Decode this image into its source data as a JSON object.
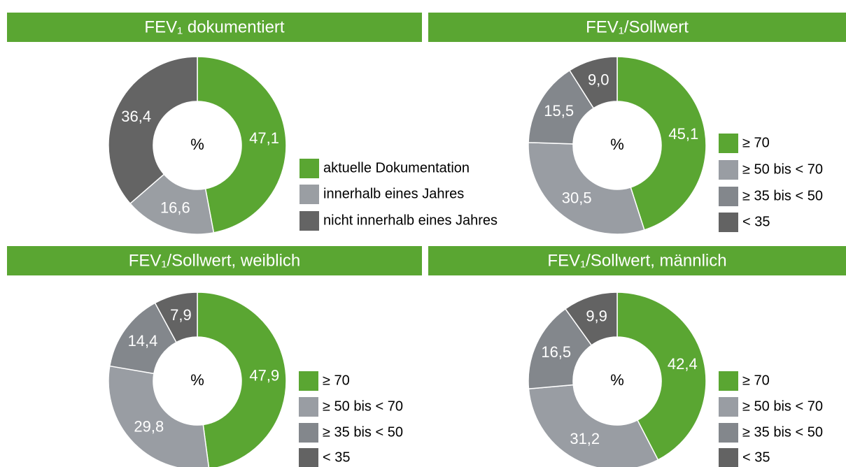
{
  "chart_data": [
    {
      "type": "pie",
      "title": "FEV₁ dokumentiert",
      "center_label": "%",
      "categories": [
        "aktuelle Dokumentation",
        "innerhalb eines Jahres",
        "nicht innerhalb eines Jahres"
      ],
      "values": [
        47.1,
        16.6,
        36.4
      ],
      "value_labels": [
        "47,1",
        "16,6",
        "36,4"
      ],
      "colors": [
        "#5aa632",
        "#9a9ea3",
        "#646464"
      ]
    },
    {
      "type": "pie",
      "title": "FEV₁/Sollwert",
      "center_label": "%",
      "categories": [
        "≥ 70",
        "≥ 50 bis < 70",
        "≥ 35 bis < 50",
        "< 35"
      ],
      "values": [
        45.1,
        30.5,
        15.5,
        9.0
      ],
      "value_labels": [
        "45,1",
        "30,5",
        "15,5",
        "9,0"
      ],
      "colors": [
        "#5aa632",
        "#999da3",
        "#83878c",
        "#636363"
      ]
    },
    {
      "type": "pie",
      "title": "FEV₁/Sollwert, weiblich",
      "center_label": "%",
      "categories": [
        "≥ 70",
        "≥ 50 bis < 70",
        "≥ 35 bis < 50",
        "< 35"
      ],
      "values": [
        47.9,
        29.8,
        14.4,
        7.9
      ],
      "value_labels": [
        "47,9",
        "29,8",
        "14,4",
        "7,9"
      ],
      "colors": [
        "#5aa632",
        "#999da3",
        "#83878c",
        "#636363"
      ]
    },
    {
      "type": "pie",
      "title": "FEV₁/Sollwert, männlich",
      "center_label": "%",
      "categories": [
        "≥ 70",
        "≥ 50 bis < 70",
        "≥ 35 bis < 50",
        "< 35"
      ],
      "values": [
        42.4,
        31.2,
        16.5,
        9.9
      ],
      "value_labels": [
        "42,4",
        "31,2",
        "16,5",
        "9,9"
      ],
      "colors": [
        "#5aa632",
        "#999da3",
        "#83878c",
        "#636363"
      ]
    }
  ]
}
